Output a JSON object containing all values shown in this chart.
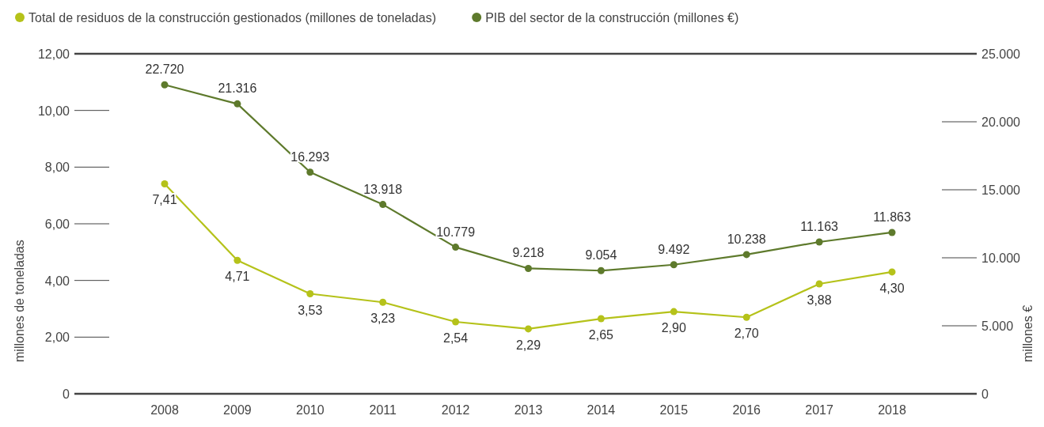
{
  "chart_data": {
    "type": "line",
    "categories": [
      "2008",
      "2009",
      "2010",
      "2011",
      "2012",
      "2013",
      "2014",
      "2015",
      "2016",
      "2017",
      "2018"
    ],
    "ylabel": "millones de toneladas",
    "y2label": "millones €",
    "ylim": [
      0,
      12
    ],
    "yticks": [
      0,
      {
        "value": 2,
        "label": "2,00"
      },
      {
        "value": 4,
        "label": "4,00"
      },
      {
        "value": 6,
        "label": "6,00"
      },
      {
        "value": 8,
        "label": "8,00"
      },
      {
        "value": 10,
        "label": "10,00"
      },
      {
        "value": 12,
        "label": "12,00"
      }
    ],
    "y2lim": [
      0,
      25000
    ],
    "y2ticks": [
      0,
      {
        "value": 5000,
        "label": "5.000"
      },
      {
        "value": 10000,
        "label": "10.000"
      },
      {
        "value": 15000,
        "label": "15.000"
      },
      {
        "value": 20000,
        "label": "20.000"
      },
      {
        "value": 25000,
        "label": "25.000"
      }
    ],
    "series": [
      {
        "name": "Total de residuos de la construcción gestionados (millones de toneladas)",
        "color": "#b5c21a",
        "values": [
          7.41,
          4.71,
          3.53,
          3.23,
          2.54,
          2.29,
          2.65,
          2.9,
          2.7,
          3.88,
          4.3
        ],
        "value_labels": [
          "7,41",
          "4,71",
          "3,53",
          "3,23",
          "2,54",
          "2,29",
          "2,65",
          "2,90",
          "2,70",
          "3,88",
          "4,30"
        ]
      },
      {
        "name": "PIB del sector de la construcción (millones €)",
        "color": "#5e7a2c",
        "axis": "y2",
        "values": [
          22720,
          21316,
          16293,
          13918,
          10779,
          9218,
          9054,
          9492,
          10238,
          11163,
          11863
        ],
        "value_labels": [
          "22.720",
          "21.316",
          "16.293",
          "13.918",
          "10.779",
          "9.218",
          "9.054",
          "9.492",
          "10.238",
          "11.163",
          "11.863"
        ]
      }
    ],
    "legend": "top left",
    "marker": "circle",
    "line_style": "solid",
    "grid": false
  }
}
